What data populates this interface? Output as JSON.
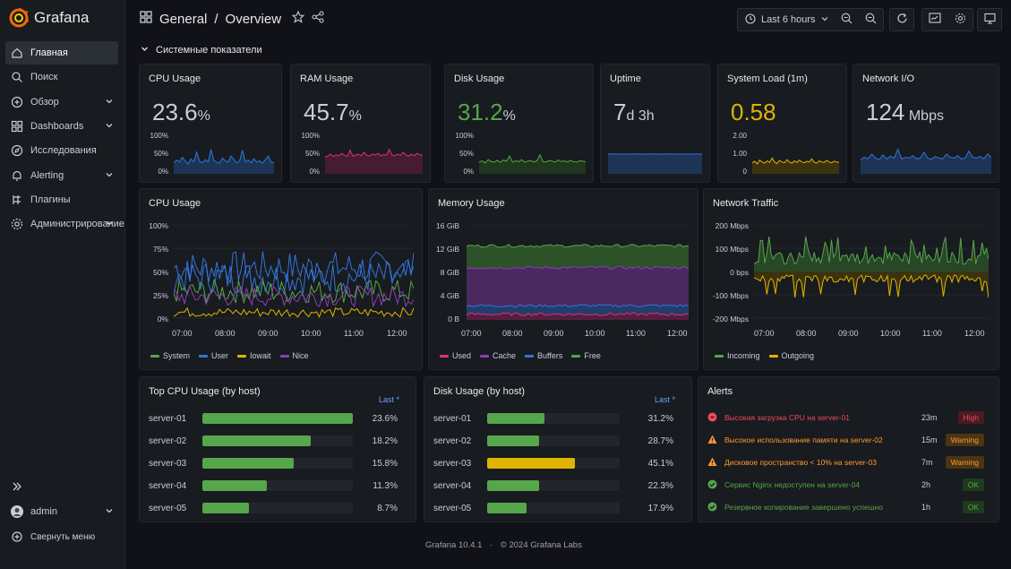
{
  "app": {
    "name": "Grafana"
  },
  "sidebar": {
    "items": [
      {
        "label": "Главная",
        "icon": "home-icon",
        "active": true
      },
      {
        "label": "Поиск",
        "icon": "search-icon"
      },
      {
        "label": "Обзор",
        "icon": "compass-icon",
        "chevron": true
      },
      {
        "label": "Dashboards",
        "icon": "dashboards-icon",
        "chevron": true
      },
      {
        "label": "Исследования",
        "icon": "explore-icon"
      },
      {
        "label": "Alerting",
        "icon": "bell-icon",
        "chevron": true
      },
      {
        "label": "Плагины",
        "icon": "plug-icon"
      },
      {
        "label": "Администрирование",
        "icon": "gear-icon",
        "chevron": true
      }
    ],
    "user": "admin",
    "collapse_label": "Свернуть меню"
  },
  "header": {
    "folder": "General",
    "separator": "/",
    "dashboard": "Overview",
    "time_range": "Last 6 hours"
  },
  "section": {
    "title": "Системные показатели"
  },
  "stats": [
    {
      "title": "CPU Usage",
      "value": "23.6",
      "unit": "%",
      "color": "#ccccdc",
      "ylabels": [
        "100%",
        "50%",
        "0%"
      ],
      "line": "#3274d9",
      "fill": "#1f3f6d",
      "spark": [
        0.28,
        0.35,
        0.3,
        0.42,
        0.33,
        0.25,
        0.38,
        0.3,
        0.55,
        0.32,
        0.28,
        0.36,
        0.3,
        0.62,
        0.34,
        0.3,
        0.27,
        0.4,
        0.33,
        0.3,
        0.45,
        0.36,
        0.28,
        0.33,
        0.6,
        0.3,
        0.35,
        0.28,
        0.38,
        0.3,
        0.33,
        0.27,
        0.36,
        0.45,
        0.3,
        0.28
      ]
    },
    {
      "title": "RAM Usage",
      "value": "45.7",
      "unit": "%",
      "color": "#ccccdc",
      "ylabels": [
        "100%",
        "50%",
        "0%"
      ],
      "line": "#e02f77",
      "fill": "#5a1c3a",
      "spark": [
        0.42,
        0.45,
        0.5,
        0.44,
        0.48,
        0.46,
        0.52,
        0.47,
        0.44,
        0.6,
        0.45,
        0.48,
        0.5,
        0.46,
        0.55,
        0.47,
        0.45,
        0.5,
        0.48,
        0.52,
        0.46,
        0.49,
        0.47,
        0.62,
        0.48,
        0.46,
        0.5,
        0.47,
        0.55,
        0.48,
        0.45,
        0.5,
        0.46,
        0.52,
        0.48,
        0.47
      ]
    },
    {
      "title": "Disk Usage",
      "value": "31.2",
      "unit": "%",
      "color": "#56a64b",
      "ylabels": [
        "100%",
        "50%",
        "0%"
      ],
      "line": "#56a64b",
      "fill": "#23421f",
      "spark": [
        0.3,
        0.33,
        0.28,
        0.36,
        0.31,
        0.3,
        0.34,
        0.29,
        0.35,
        0.32,
        0.45,
        0.3,
        0.33,
        0.31,
        0.36,
        0.3,
        0.32,
        0.34,
        0.3,
        0.33,
        0.48,
        0.31,
        0.3,
        0.34,
        0.32,
        0.3,
        0.35,
        0.31,
        0.33,
        0.3,
        0.34,
        0.31,
        0.3,
        0.33,
        0.32,
        0.31
      ]
    },
    {
      "title": "Uptime",
      "value": "7",
      "unit": "d 3h",
      "color": "#ccccdc",
      "ylabels": [],
      "line": "#3274d9",
      "fill": "#1f3f6d",
      "spark": [
        0.5,
        0.5,
        0.51,
        0.5,
        0.5,
        0.5,
        0.51,
        0.5,
        0.5,
        0.5,
        0.5,
        0.51,
        0.5,
        0.5,
        0.5,
        0.5,
        0.51,
        0.5,
        0.5,
        0.5,
        0.5,
        0.5,
        0.51,
        0.5,
        0.5,
        0.5,
        0.5,
        0.51,
        0.5,
        0.5,
        0.5,
        0.5,
        0.5,
        0.51,
        0.5,
        0.5
      ]
    },
    {
      "title": "System Load (1m)",
      "value": "0.58",
      "unit": "",
      "color": "#e0b400",
      "ylabels": [
        "2.00",
        "1.00",
        "0"
      ],
      "line": "#e0b400",
      "fill": "#4a3d0a",
      "spark": [
        0.28,
        0.32,
        0.25,
        0.35,
        0.3,
        0.27,
        0.33,
        0.29,
        0.4,
        0.3,
        0.26,
        0.34,
        0.3,
        0.28,
        0.36,
        0.3,
        0.27,
        0.33,
        0.29,
        0.35,
        0.3,
        0.28,
        0.32,
        0.3,
        0.38,
        0.29,
        0.27,
        0.33,
        0.3,
        0.29,
        0.34,
        0.3,
        0.28,
        0.32,
        0.3,
        0.29
      ]
    },
    {
      "title": "Network I/O",
      "value": "124",
      "unit": " Mbps",
      "color": "#ccccdc",
      "ylabels": [],
      "line": "#3274d9",
      "fill": "#1f3f6d",
      "spark": [
        0.35,
        0.42,
        0.38,
        0.5,
        0.4,
        0.36,
        0.48,
        0.38,
        0.45,
        0.4,
        0.62,
        0.38,
        0.42,
        0.4,
        0.46,
        0.38,
        0.4,
        0.55,
        0.4,
        0.37,
        0.44,
        0.4,
        0.38,
        0.5,
        0.42,
        0.4,
        0.46,
        0.38,
        0.4,
        0.58,
        0.42,
        0.4,
        0.44,
        0.38,
        0.5,
        0.42
      ]
    }
  ],
  "panels": {
    "cpu": {
      "title": "CPU Usage",
      "ylabels": [
        "100%",
        "75%",
        "50%",
        "25%",
        "0%"
      ],
      "xlabels": [
        "07:00",
        "08:00",
        "09:00",
        "10:00",
        "11:00",
        "12:00"
      ],
      "legend": [
        {
          "name": "System",
          "color": "#56a64b"
        },
        {
          "name": "User",
          "color": "#3274d9"
        },
        {
          "name": "Iowait",
          "color": "#e0b400"
        },
        {
          "name": "Nice",
          "color": "#8f3bb8"
        }
      ]
    },
    "memory": {
      "title": "Memory Usage",
      "ylabels": [
        "16 GiB",
        "12 GiB",
        "8 GiB",
        "4 GiB",
        "0 B"
      ],
      "xlabels": [
        "07:00",
        "08:00",
        "09:00",
        "10:00",
        "11:00",
        "12:00"
      ],
      "legend": [
        {
          "name": "Used",
          "color": "#e02f77"
        },
        {
          "name": "Cache",
          "color": "#8f3bb8"
        },
        {
          "name": "Buffers",
          "color": "#3274d9"
        },
        {
          "name": "Free",
          "color": "#56a64b"
        }
      ]
    },
    "network": {
      "title": "Network Traffic",
      "ylabels": [
        "200 Mbps",
        "100 Mbps",
        "0 bps",
        "-100 Mbps",
        "-200 Mbps"
      ],
      "xlabels": [
        "07:00",
        "08:00",
        "09:00",
        "10:00",
        "11:00",
        "12:00"
      ],
      "legend": [
        {
          "name": "Incoming",
          "color": "#56a64b"
        },
        {
          "name": "Outgoing",
          "color": "#e0b400"
        }
      ]
    }
  },
  "top_cpu": {
    "title": "Top CPU Usage (by host)",
    "col": "Last *",
    "rows": [
      {
        "name": "server-01",
        "value": "23.6%",
        "fraction": 1.0,
        "color": "#56a64b"
      },
      {
        "name": "server-02",
        "value": "18.2%",
        "fraction": 0.72,
        "color": "#56a64b"
      },
      {
        "name": "server-03",
        "value": "15.8%",
        "fraction": 0.61,
        "color": "#56a64b"
      },
      {
        "name": "server-04",
        "value": "11.3%",
        "fraction": 0.43,
        "color": "#56a64b"
      },
      {
        "name": "server-05",
        "value": "8.7%",
        "fraction": 0.31,
        "color": "#56a64b"
      }
    ]
  },
  "disk_usage": {
    "title": "Disk Usage (by host)",
    "col": "Last *",
    "rows": [
      {
        "name": "server-01",
        "value": "31.2%",
        "fraction": 0.43,
        "color": "#56a64b"
      },
      {
        "name": "server-02",
        "value": "28.7%",
        "fraction": 0.39,
        "color": "#56a64b"
      },
      {
        "name": "server-03",
        "value": "45.1%",
        "fraction": 0.66,
        "color": "#e0b400"
      },
      {
        "name": "server-04",
        "value": "22.3%",
        "fraction": 0.39,
        "color": "#56a64b"
      },
      {
        "name": "server-05",
        "value": "17.9%",
        "fraction": 0.3,
        "color": "#56a64b"
      }
    ]
  },
  "alerts": {
    "title": "Alerts",
    "rows": [
      {
        "msg": "Высокая загрузка CPU на server-01",
        "time": "23m",
        "badge": "High",
        "level": "error",
        "color": "#f2495c"
      },
      {
        "msg": "Высокое использование памяти на server-02",
        "time": "15m",
        "badge": "Warning",
        "level": "warning",
        "color": "#ff9830"
      },
      {
        "msg": "Дисковое пространство < 10% на server-03",
        "time": "7m",
        "badge": "Warning",
        "level": "warning",
        "color": "#ff9830"
      },
      {
        "msg": "Сервис Nginx недоступен на server-04",
        "time": "2h",
        "badge": "OK",
        "level": "ok",
        "color": "#56a64b"
      },
      {
        "msg": "Резервное копирование завершено успешно",
        "time": "1h",
        "badge": "OK",
        "level": "ok",
        "color": "#56a64b"
      }
    ]
  },
  "footer": {
    "version": "Grafana 10.4.1",
    "dot": "·",
    "copyright": "© 2024 Grafana Labs"
  }
}
